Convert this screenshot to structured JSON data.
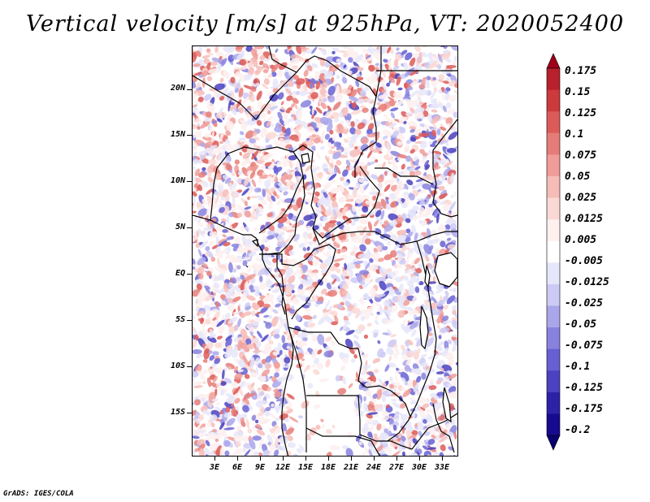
{
  "title": "Vertical velocity [m/s] at 925hPa, VT: 2020052400",
  "credit": "GrADS: IGES/COLA",
  "map": {
    "region": "Central Africa",
    "variable": "Vertical velocity",
    "units": "m/s",
    "level": "925hPa",
    "valid_time": "2020052400"
  },
  "axes": {
    "lat_labels": [
      "20N",
      "15N",
      "10N",
      "5N",
      "EQ",
      "5S",
      "10S",
      "15S"
    ],
    "lon_labels": [
      "3E",
      "6E",
      "9E",
      "12E",
      "15E",
      "18E",
      "21E",
      "24E",
      "27E",
      "30E",
      "33E"
    ]
  },
  "colorbar": {
    "labels": [
      "0.175",
      "0.15",
      "0.125",
      "0.1",
      "0.075",
      "0.05",
      "0.025",
      "0.0125",
      "0.005",
      "-0.005",
      "-0.0125",
      "-0.025",
      "-0.05",
      "-0.075",
      "-0.1",
      "-0.125",
      "-0.175",
      "-0.2"
    ],
    "colors": [
      "#a00018",
      "#b8202c",
      "#cc3a3e",
      "#dc5a58",
      "#e67c78",
      "#f09c98",
      "#f6bcb8",
      "#fad8d4",
      "#fdf0ee",
      "#ffffff",
      "#e6e6fa",
      "#cccaf4",
      "#aaa6ea",
      "#8882de",
      "#6660d2",
      "#4a42c0",
      "#2c22a8",
      "#160a90",
      "#0a0070"
    ]
  }
}
